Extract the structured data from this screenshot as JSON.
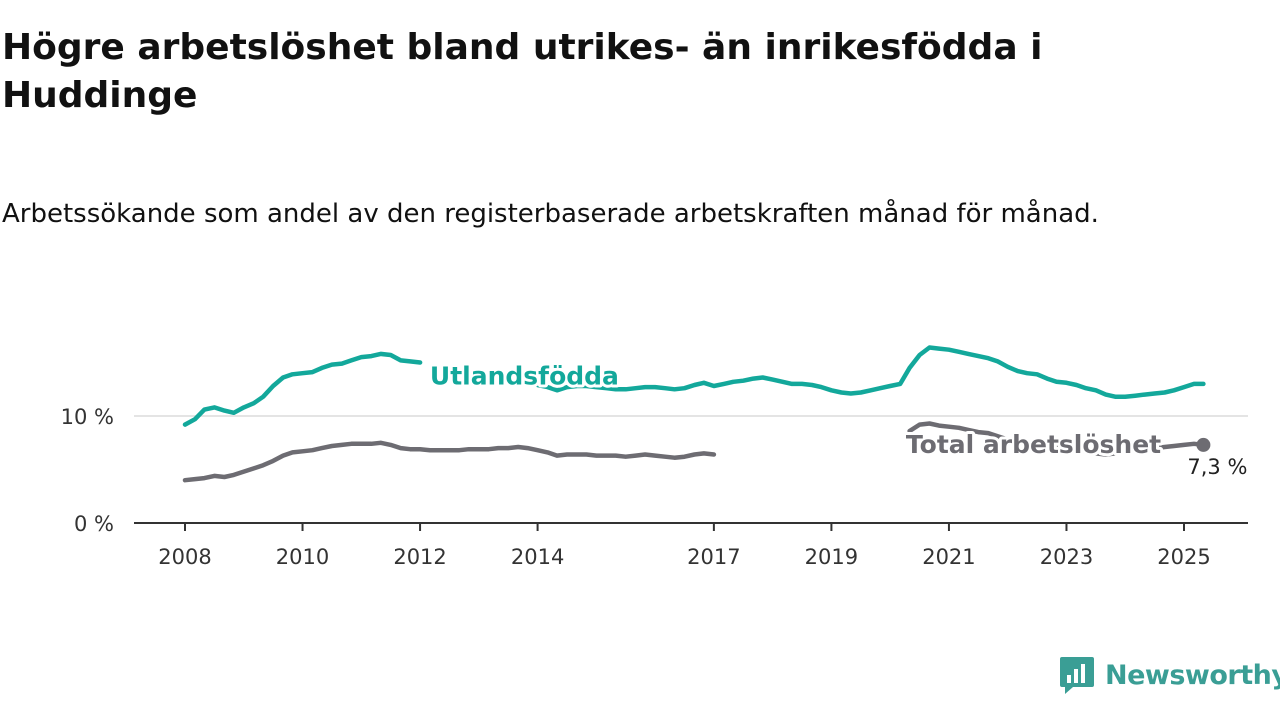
{
  "title": "Högre arbetslöshet bland utrikes- än inrikesfödda i Huddinge",
  "subtitle": "Arbetssökande som andel av den registerbaserade arbetskraften månad för månad.",
  "brand": {
    "name": "Newsworthy",
    "color": "#3a9e95",
    "icon": "newsworthy-logo-icon"
  },
  "colors": {
    "utlandsfodda": "#13a89b",
    "total": "#6d6c72",
    "axis": "#333333",
    "grid": "#dcdcdc"
  },
  "chart_data": {
    "type": "line",
    "title": "Högre arbetslöshet bland utrikes- än inrikesfödda i Huddinge",
    "subtitle": "Arbetssökande som andel av den registerbaserade arbetskraften månad för månad.",
    "xlabel": "",
    "ylabel": "",
    "xlim": [
      2007.8,
      2026.1
    ],
    "ylim": [
      0,
      19
    ],
    "x_ticks": [
      2008,
      2010,
      2012,
      2014,
      2017,
      2019,
      2021,
      2023,
      2025
    ],
    "x_tick_labels": [
      "2008",
      "2010",
      "2012",
      "2014",
      "2017",
      "2019",
      "2021",
      "2023",
      "2025"
    ],
    "y_ticks": [
      0,
      10
    ],
    "y_tick_labels": [
      "0 %",
      "10 %"
    ],
    "grid": "horizontal",
    "legend": "direct labels on lines",
    "series": [
      {
        "name": "Utlandsfödda",
        "key": "utlandsfodda",
        "label_at": 2012.1,
        "points": [
          [
            2008.0,
            9.2
          ],
          [
            2008.17,
            9.7
          ],
          [
            2008.33,
            10.6
          ],
          [
            2008.5,
            10.8
          ],
          [
            2008.67,
            10.5
          ],
          [
            2008.83,
            10.3
          ],
          [
            2009.0,
            10.8
          ],
          [
            2009.17,
            11.2
          ],
          [
            2009.33,
            11.8
          ],
          [
            2009.5,
            12.8
          ],
          [
            2009.67,
            13.6
          ],
          [
            2009.83,
            13.9
          ],
          [
            2010.0,
            14.0
          ],
          [
            2010.17,
            14.1
          ],
          [
            2010.33,
            14.5
          ],
          [
            2010.5,
            14.8
          ],
          [
            2010.67,
            14.9
          ],
          [
            2010.83,
            15.2
          ],
          [
            2011.0,
            15.5
          ],
          [
            2011.17,
            15.6
          ],
          [
            2011.33,
            15.8
          ],
          [
            2011.5,
            15.7
          ],
          [
            2011.67,
            15.2
          ],
          [
            2011.83,
            15.1
          ],
          [
            2012.0,
            15.0
          ],
          [
            2014.0,
            12.9
          ],
          [
            2014.17,
            12.7
          ],
          [
            2014.33,
            12.4
          ],
          [
            2014.5,
            12.7
          ],
          [
            2014.67,
            12.8
          ],
          [
            2014.83,
            12.8
          ],
          [
            2015.0,
            12.7
          ],
          [
            2015.17,
            12.6
          ],
          [
            2015.33,
            12.5
          ],
          [
            2015.5,
            12.5
          ],
          [
            2015.67,
            12.6
          ],
          [
            2015.83,
            12.7
          ],
          [
            2016.0,
            12.7
          ],
          [
            2016.17,
            12.6
          ],
          [
            2016.33,
            12.5
          ],
          [
            2016.5,
            12.6
          ],
          [
            2016.67,
            12.9
          ],
          [
            2016.83,
            13.1
          ],
          [
            2017.0,
            12.8
          ],
          [
            2017.17,
            13.0
          ],
          [
            2017.33,
            13.2
          ],
          [
            2017.5,
            13.3
          ],
          [
            2017.67,
            13.5
          ],
          [
            2017.83,
            13.6
          ],
          [
            2018.0,
            13.4
          ],
          [
            2018.17,
            13.2
          ],
          [
            2018.33,
            13.0
          ],
          [
            2018.5,
            13.0
          ],
          [
            2018.67,
            12.9
          ],
          [
            2018.83,
            12.7
          ],
          [
            2019.0,
            12.4
          ],
          [
            2019.17,
            12.2
          ],
          [
            2019.33,
            12.1
          ],
          [
            2019.5,
            12.2
          ],
          [
            2019.67,
            12.4
          ],
          [
            2019.83,
            12.6
          ],
          [
            2020.0,
            12.8
          ],
          [
            2020.17,
            13.0
          ],
          [
            2020.33,
            14.5
          ],
          [
            2020.5,
            15.7
          ],
          [
            2020.67,
            16.4
          ],
          [
            2020.83,
            16.3
          ],
          [
            2021.0,
            16.2
          ],
          [
            2021.17,
            16.0
          ],
          [
            2021.33,
            15.8
          ],
          [
            2021.5,
            15.6
          ],
          [
            2021.67,
            15.4
          ],
          [
            2021.83,
            15.1
          ],
          [
            2022.0,
            14.6
          ],
          [
            2022.17,
            14.2
          ],
          [
            2022.33,
            14.0
          ],
          [
            2022.5,
            13.9
          ],
          [
            2022.67,
            13.5
          ],
          [
            2022.83,
            13.2
          ],
          [
            2023.0,
            13.1
          ],
          [
            2023.17,
            12.9
          ],
          [
            2023.33,
            12.6
          ],
          [
            2023.5,
            12.4
          ],
          [
            2023.67,
            12.0
          ],
          [
            2023.83,
            11.8
          ],
          [
            2024.0,
            11.8
          ],
          [
            2024.17,
            11.9
          ],
          [
            2024.33,
            12.0
          ],
          [
            2024.5,
            12.1
          ],
          [
            2024.67,
            12.2
          ],
          [
            2024.83,
            12.4
          ],
          [
            2025.0,
            12.7
          ],
          [
            2025.17,
            13.0
          ],
          [
            2025.33,
            13.0
          ]
        ]
      },
      {
        "name": "Total arbetslöshet",
        "key": "total",
        "label_at": 2020.2,
        "value_label": "7,3 %",
        "points": [
          [
            2008.0,
            4.0
          ],
          [
            2008.17,
            4.1
          ],
          [
            2008.33,
            4.2
          ],
          [
            2008.5,
            4.4
          ],
          [
            2008.67,
            4.3
          ],
          [
            2008.83,
            4.5
          ],
          [
            2009.0,
            4.8
          ],
          [
            2009.17,
            5.1
          ],
          [
            2009.33,
            5.4
          ],
          [
            2009.5,
            5.8
          ],
          [
            2009.67,
            6.3
          ],
          [
            2009.83,
            6.6
          ],
          [
            2010.0,
            6.7
          ],
          [
            2010.17,
            6.8
          ],
          [
            2010.33,
            7.0
          ],
          [
            2010.5,
            7.2
          ],
          [
            2010.67,
            7.3
          ],
          [
            2010.83,
            7.4
          ],
          [
            2011.0,
            7.4
          ],
          [
            2011.17,
            7.4
          ],
          [
            2011.33,
            7.5
          ],
          [
            2011.5,
            7.3
          ],
          [
            2011.67,
            7.0
          ],
          [
            2011.83,
            6.9
          ],
          [
            2012.0,
            6.9
          ],
          [
            2012.17,
            6.8
          ],
          [
            2012.33,
            6.8
          ],
          [
            2012.5,
            6.8
          ],
          [
            2012.67,
            6.8
          ],
          [
            2012.83,
            6.9
          ],
          [
            2013.0,
            6.9
          ],
          [
            2013.17,
            6.9
          ],
          [
            2013.33,
            7.0
          ],
          [
            2013.5,
            7.0
          ],
          [
            2013.67,
            7.1
          ],
          [
            2013.83,
            7.0
          ],
          [
            2014.0,
            6.8
          ],
          [
            2014.17,
            6.6
          ],
          [
            2014.33,
            6.3
          ],
          [
            2014.5,
            6.4
          ],
          [
            2014.67,
            6.4
          ],
          [
            2014.83,
            6.4
          ],
          [
            2015.0,
            6.3
          ],
          [
            2015.17,
            6.3
          ],
          [
            2015.33,
            6.3
          ],
          [
            2015.5,
            6.2
          ],
          [
            2015.67,
            6.3
          ],
          [
            2015.83,
            6.4
          ],
          [
            2016.0,
            6.3
          ],
          [
            2016.17,
            6.2
          ],
          [
            2016.33,
            6.1
          ],
          [
            2016.5,
            6.2
          ],
          [
            2016.67,
            6.4
          ],
          [
            2016.83,
            6.5
          ],
          [
            2017.0,
            6.4
          ],
          [
            2020.33,
            8.6
          ],
          [
            2020.5,
            9.2
          ],
          [
            2020.67,
            9.3
          ],
          [
            2020.83,
            9.1
          ],
          [
            2021.0,
            9.0
          ],
          [
            2021.17,
            8.9
          ],
          [
            2021.33,
            8.7
          ],
          [
            2021.5,
            8.5
          ],
          [
            2021.67,
            8.4
          ],
          [
            2021.83,
            8.1
          ],
          [
            2022.0,
            7.8
          ],
          [
            2022.17,
            7.7
          ],
          [
            2022.33,
            7.6
          ],
          [
            2022.5,
            7.3
          ],
          [
            2022.67,
            7.2
          ],
          [
            2022.83,
            7.2
          ],
          [
            2023.0,
            7.0
          ],
          [
            2023.17,
            6.8
          ],
          [
            2023.33,
            6.7
          ],
          [
            2023.5,
            6.5
          ],
          [
            2023.67,
            6.4
          ],
          [
            2023.83,
            6.5
          ],
          [
            2024.0,
            6.7
          ],
          [
            2024.17,
            6.9
          ],
          [
            2024.33,
            6.9
          ],
          [
            2024.5,
            7.0
          ],
          [
            2024.67,
            7.1
          ],
          [
            2024.83,
            7.2
          ],
          [
            2025.0,
            7.3
          ],
          [
            2025.17,
            7.4
          ],
          [
            2025.33,
            7.3
          ]
        ]
      }
    ]
  }
}
